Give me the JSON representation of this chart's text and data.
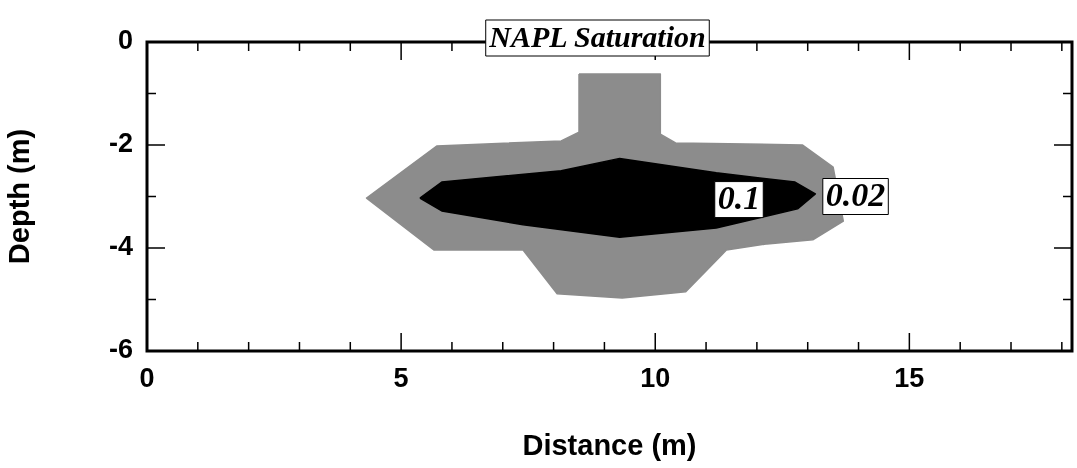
{
  "chart_data": {
    "type": "area",
    "title": "NAPL Saturation",
    "xlabel": "Distance (m)",
    "ylabel": "Depth (m)",
    "xlim": [
      0,
      18.2
    ],
    "ylim": [
      -6,
      0
    ],
    "xticks": [
      0,
      {
        "value": 1,
        "label": null
      },
      {
        "value": 2,
        "label": null
      },
      {
        "value": 3,
        "label": null
      },
      {
        "value": 4,
        "label": null
      },
      5,
      {
        "value": 6,
        "label": null
      },
      {
        "value": 7,
        "label": null
      },
      {
        "value": 8,
        "label": null
      },
      {
        "value": 9,
        "label": null
      },
      10,
      {
        "value": 11,
        "label": null
      },
      {
        "value": 12,
        "label": null
      },
      {
        "value": 13,
        "label": null
      },
      {
        "value": 14,
        "label": null
      },
      15,
      {
        "value": 16,
        "label": null
      },
      {
        "value": 17,
        "label": null
      },
      {
        "value": 18,
        "label": null
      }
    ],
    "yticks": [
      -6,
      {
        "value": -5,
        "label": null
      },
      -4,
      {
        "value": -3,
        "label": null
      },
      -2,
      {
        "value": -1,
        "label": null
      },
      0
    ],
    "series": [
      {
        "color": "#8c8c8c",
        "x": [
          8.5,
          10.1,
          10.1,
          10.4,
          12.9,
          13.5,
          13.7,
          13.1,
          12.2,
          11.4,
          10.6,
          9.35,
          8.07,
          7.4,
          5.65,
          4.32,
          5.7,
          8.15,
          8.5,
          8.5
        ],
        "values": [
          -0.62,
          -0.62,
          -1.79,
          -1.96,
          -2.0,
          -2.43,
          -3.48,
          -3.84,
          -3.92,
          -4.04,
          -4.85,
          -4.97,
          -4.89,
          -4.04,
          -4.04,
          -3.03,
          -2.02,
          -1.92,
          -1.75,
          -0.62
        ]
      },
      {
        "color": "#000000",
        "x": [
          5.37,
          5.8,
          8.15,
          9.3,
          11.2,
          12.75,
          13.15,
          12.8,
          11.2,
          9.3,
          7.4,
          5.8,
          5.37
        ],
        "values": [
          -3.03,
          -2.72,
          -2.5,
          -2.26,
          -2.54,
          -2.72,
          -2.95,
          -3.24,
          -3.61,
          -3.79,
          -3.55,
          -3.28,
          -3.03
        ]
      }
    ],
    "annotations": [
      "0.1",
      "0.02"
    ],
    "legend": false
  }
}
